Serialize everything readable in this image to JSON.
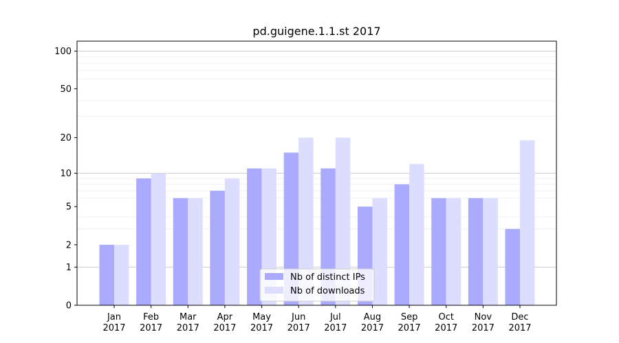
{
  "chart_data": {
    "type": "bar",
    "title": "pd.guigene.1.1.st 2017",
    "xlabel": "",
    "ylabel": "",
    "yscale": "log(1+y)",
    "ylim": [
      0,
      120
    ],
    "yticks": [
      0,
      1,
      2,
      5,
      10,
      20,
      50,
      100
    ],
    "grid": true,
    "legend_position": "lower-center",
    "categories": [
      {
        "month": "Jan",
        "year": "2017"
      },
      {
        "month": "Feb",
        "year": "2017"
      },
      {
        "month": "Mar",
        "year": "2017"
      },
      {
        "month": "Apr",
        "year": "2017"
      },
      {
        "month": "May",
        "year": "2017"
      },
      {
        "month": "Jun",
        "year": "2017"
      },
      {
        "month": "Jul",
        "year": "2017"
      },
      {
        "month": "Aug",
        "year": "2017"
      },
      {
        "month": "Sep",
        "year": "2017"
      },
      {
        "month": "Oct",
        "year": "2017"
      },
      {
        "month": "Nov",
        "year": "2017"
      },
      {
        "month": "Dec",
        "year": "2017"
      }
    ],
    "series": [
      {
        "name": "Nb of distinct IPs",
        "color": "#aaaaff",
        "values": [
          2,
          9,
          6,
          7,
          11,
          15,
          11,
          5,
          8,
          6,
          6,
          3
        ]
      },
      {
        "name": "Nb of downloads",
        "color": "#ddddff",
        "values": [
          2,
          10,
          6,
          9,
          11,
          20,
          20,
          6,
          12,
          6,
          6,
          19
        ]
      }
    ]
  }
}
